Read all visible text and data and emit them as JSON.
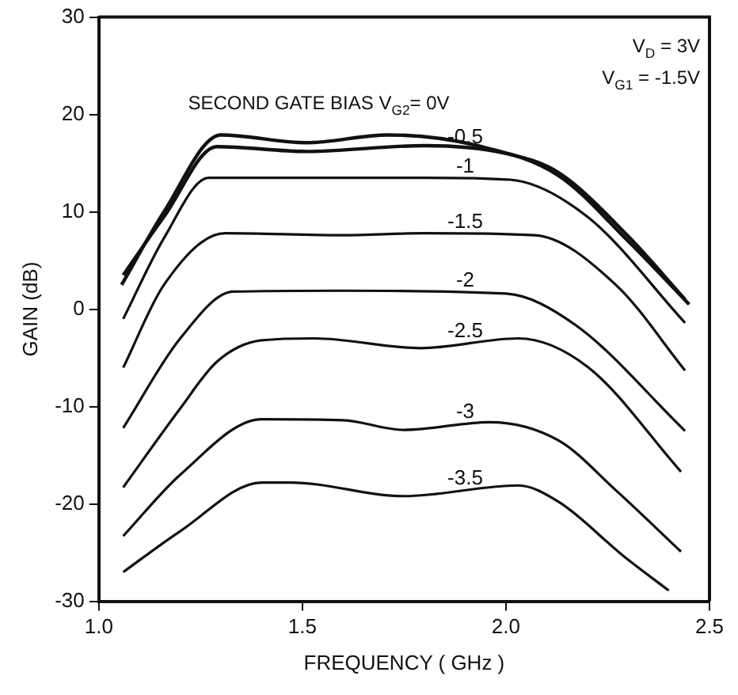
{
  "chart_data": {
    "type": "line",
    "xlabel": "FREQUENCY ( GHz )",
    "ylabel": "GAIN (dB)",
    "xlim": [
      1.0,
      2.5
    ],
    "xticks": [
      {
        "value": 1.0,
        "label": "1.0"
      },
      {
        "value": 1.5,
        "label": "1.5"
      },
      {
        "value": 2.0,
        "label": "2.0"
      },
      {
        "value": 2.5,
        "label": "2.5"
      }
    ],
    "ylim": [
      -30,
      30
    ],
    "yticks": [
      -30,
      -20,
      -10,
      0,
      10,
      20,
      30
    ],
    "grid": false,
    "legend": false,
    "marker": "none",
    "line_style": "solid",
    "annotations": [
      "V$_{D}$ = 3V",
      "V$_{G1}$ = -1.5V"
    ],
    "series": [
      {
        "name": "SECOND GATE BIAS V$_{G2}$= 0V",
        "color": "#111111",
        "x": [
          1.056,
          1.16,
          1.3,
          1.51,
          1.71,
          1.93,
          2.13,
          2.3,
          2.45
        ],
        "values": [
          2.5,
          10,
          17.9,
          17.1,
          17.9,
          16.8,
          13.7,
          7,
          0.5
        ]
      },
      {
        "name": "-0.5",
        "color": "#111111",
        "x": [
          1.06,
          1.16,
          1.29,
          1.51,
          1.8,
          2.0,
          2.13,
          2.3,
          2.44
        ],
        "values": [
          3.5,
          9.5,
          16.7,
          16.2,
          16.8,
          16,
          14,
          7.5,
          1
        ]
      },
      {
        "name": "-1",
        "color": "#111111",
        "x": [
          1.06,
          1.16,
          1.27,
          1.5,
          1.8,
          2.01,
          2.2,
          2.44
        ],
        "values": [
          -1,
          7.3,
          13.5,
          13.5,
          13.5,
          13.3,
          9.5,
          -1.4
        ]
      },
      {
        "name": "-1.5",
        "color": "#111111",
        "x": [
          1.06,
          1.16,
          1.31,
          1.6,
          1.8,
          2.07,
          2.27,
          2.44
        ],
        "values": [
          -6,
          2.5,
          7.8,
          7.6,
          7.8,
          7.6,
          2.5,
          -6.3
        ]
      },
      {
        "name": "-2",
        "color": "#111111",
        "x": [
          1.06,
          1.2,
          1.33,
          1.6,
          2.0,
          2.17,
          2.44
        ],
        "values": [
          -12.2,
          -3,
          1.8,
          1.9,
          1.6,
          -1.6,
          -12.5
        ]
      },
      {
        "name": "-2.5",
        "color": "#111111",
        "x": [
          1.06,
          1.2,
          1.29,
          1.4,
          1.53,
          1.79,
          2.03,
          2.2,
          2.43
        ],
        "values": [
          -18.3,
          -10.2,
          -5.4,
          -3.2,
          -3.0,
          -4.0,
          -3.0,
          -5.9,
          -16.7
        ]
      },
      {
        "name": "-3",
        "color": "#111111",
        "x": [
          1.06,
          1.2,
          1.4,
          1.6,
          1.75,
          1.96,
          2.13,
          2.27,
          2.43
        ],
        "values": [
          -23.3,
          -17,
          -11.3,
          -11.4,
          -12.4,
          -11.6,
          -13.5,
          -18.6,
          -24.9
        ]
      },
      {
        "name": "-3.5",
        "color": "#111111",
        "x": [
          1.06,
          1.2,
          1.4,
          1.47,
          1.75,
          2.03,
          2.13,
          2.29,
          2.4
        ],
        "values": [
          -27,
          -22.8,
          -17.8,
          -17.8,
          -19.2,
          -18.1,
          -19.8,
          -25.4,
          -28.9
        ]
      }
    ]
  }
}
